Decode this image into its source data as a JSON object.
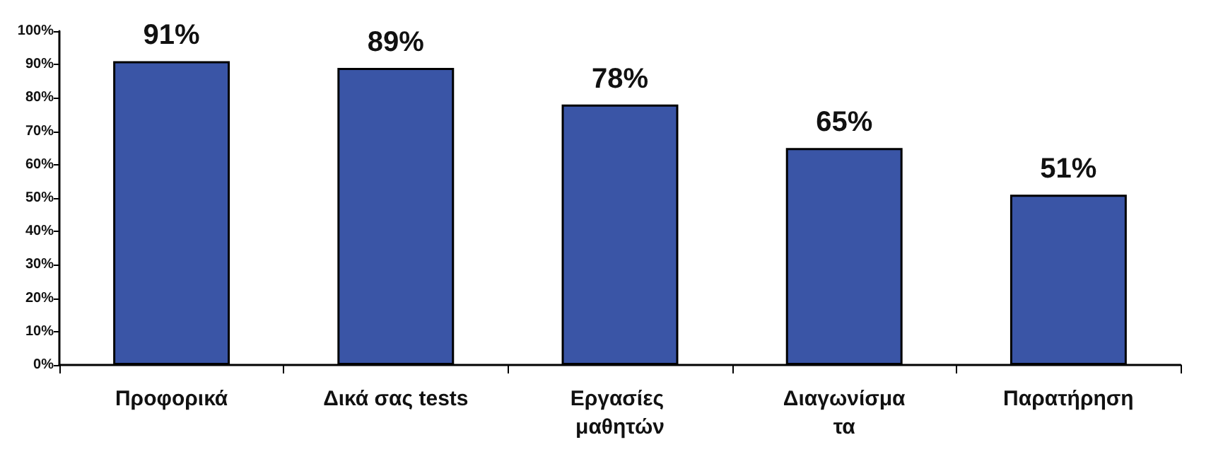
{
  "chart_data": {
    "type": "bar",
    "categories": [
      "Προφορικά",
      "Δικά σας tests",
      "Εργασίες μαθητών",
      "Διαγωνίσματα",
      "Παρατήρηση"
    ],
    "values": [
      91,
      89,
      78,
      65,
      51
    ],
    "value_labels": [
      "91%",
      "89%",
      "78%",
      "65%",
      "51%"
    ],
    "color": "#3a55a6",
    "ylim": [
      0,
      100
    ],
    "yticks": [
      {
        "value": 0,
        "label": "0%"
      },
      {
        "value": 10,
        "label": "10%"
      },
      {
        "value": 20,
        "label": "20%"
      },
      {
        "value": 30,
        "label": "30%"
      },
      {
        "value": 40,
        "label": "40%"
      },
      {
        "value": 50,
        "label": "50%"
      },
      {
        "value": 60,
        "label": "60%"
      },
      {
        "value": 70,
        "label": "70%"
      },
      {
        "value": 80,
        "label": "80%"
      },
      {
        "value": 90,
        "label": "90%"
      },
      {
        "value": 100,
        "label": "100%"
      }
    ],
    "grid": false
  }
}
